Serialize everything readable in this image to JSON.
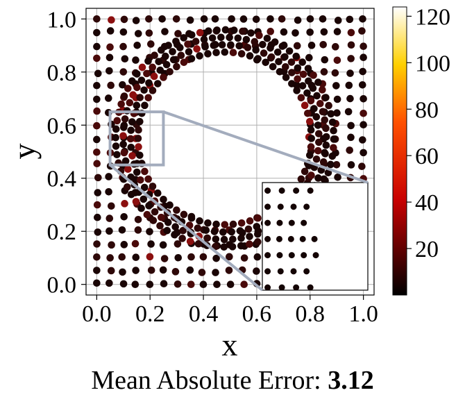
{
  "chart_data": {
    "type": "scatter",
    "xlabel": "x",
    "ylabel": "y",
    "xlim": [
      -0.04,
      1.04
    ],
    "ylim": [
      -0.04,
      1.04
    ],
    "xticks": [
      "0.0",
      "0.2",
      "0.4",
      "0.6",
      "0.8",
      "1.0"
    ],
    "yticks": [
      "0.0",
      "0.2",
      "0.4",
      "0.6",
      "0.8",
      "1.0"
    ],
    "grid": true,
    "colormap": "hot",
    "colorbar": {
      "min": 0,
      "max": 124,
      "ticks": [
        "20",
        "40",
        "60",
        "80",
        "100",
        "120"
      ]
    },
    "domain_description": "unit square with a circular hole centered near (0.5, 0.55) of radius ~0.3, points colored by absolute error",
    "zoom_box": {
      "x": [
        0.05,
        0.25
      ],
      "y": [
        0.45,
        0.65
      ]
    },
    "colors": {
      "grid": "#b0b0b0",
      "zoom_box": "#a3acbd",
      "point_low": "#1a0000",
      "point_mid": "#8b0000"
    }
  },
  "caption": {
    "label": "Mean Absolute Error:",
    "value": "3.12"
  }
}
